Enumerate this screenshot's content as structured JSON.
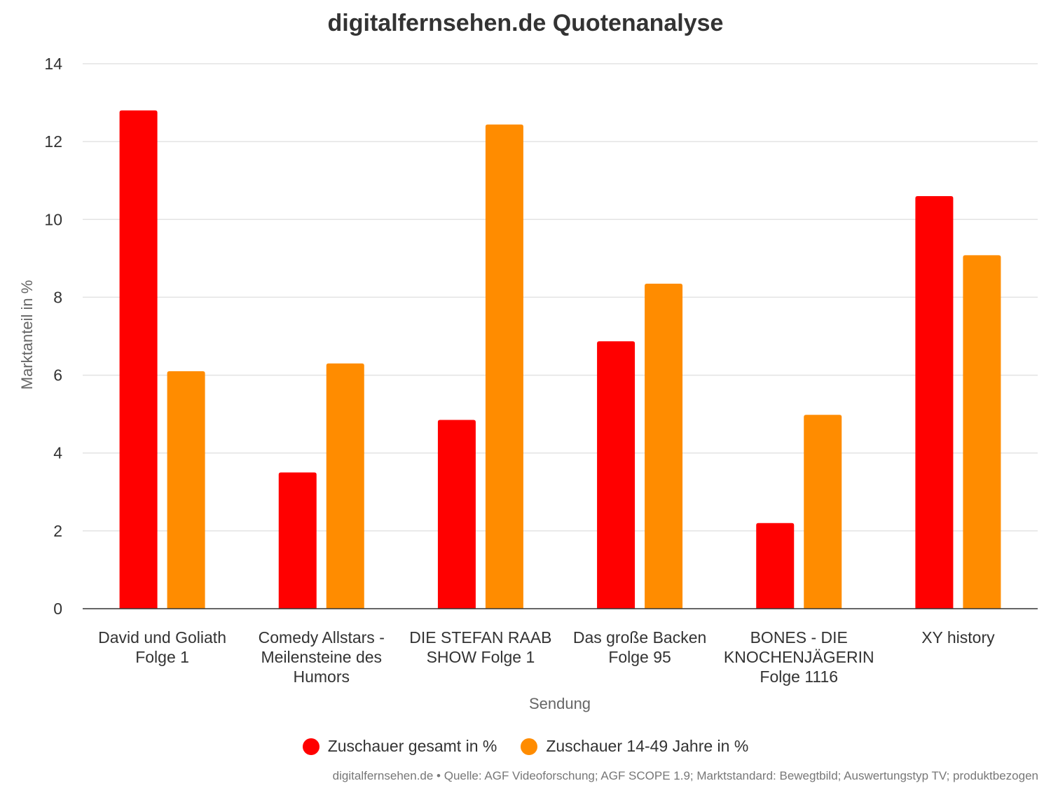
{
  "chart_data": {
    "type": "bar",
    "title": "digitalfernsehen.de Quotenanalyse",
    "xlabel": "Sendung",
    "ylabel": "Marktanteil in %",
    "ylim": [
      0,
      14
    ],
    "yticks": [
      0,
      2,
      4,
      6,
      8,
      10,
      12,
      14
    ],
    "grid": true,
    "legend_position": "bottom",
    "categories": [
      [
        "David und Goliath",
        "Folge 1"
      ],
      [
        "Comedy Allstars -",
        "Meilensteine des",
        "Humors"
      ],
      [
        "DIE STEFAN RAAB",
        "SHOW Folge 1"
      ],
      [
        "Das große Backen",
        "Folge 95"
      ],
      [
        "BONES - DIE",
        "KNOCHENJÄGERIN",
        "Folge 1116"
      ],
      [
        "XY history"
      ]
    ],
    "series": [
      {
        "name": "Zuschauer gesamt in %",
        "color": "#ff0000",
        "values": [
          12.8,
          3.5,
          4.85,
          6.87,
          2.2,
          10.6
        ]
      },
      {
        "name": "Zuschauer 14-49 Jahre in %",
        "color": "#ff8c00",
        "values": [
          6.1,
          6.3,
          12.44,
          8.35,
          4.98,
          9.08
        ]
      }
    ]
  },
  "footer": "digitalfernsehen.de • Quelle: AGF Videoforschung; AGF SCOPE 1.9; Marktstandard: Bewegtbild; Auswertungstyp TV; produktbezogen"
}
